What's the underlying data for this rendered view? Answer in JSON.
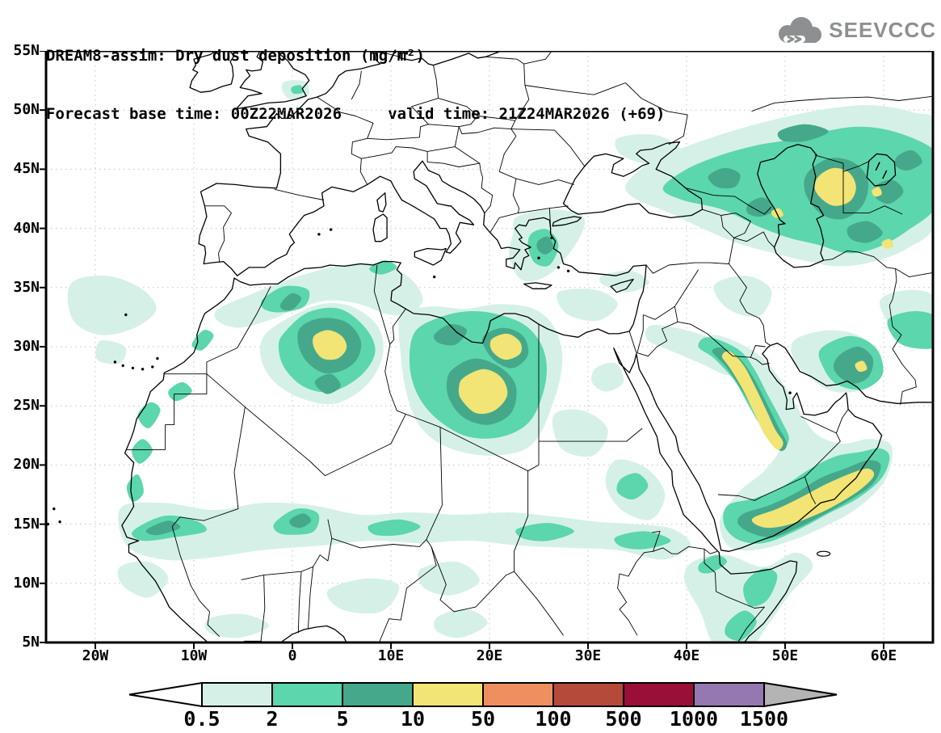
{
  "header": {
    "title": "DREAM8-assim: Dry dust deposition (mg/m²)",
    "subtitle": "Forecast base time: 00Z22MAR2026     valid time: 21Z24MAR2026 (+69)"
  },
  "logo": {
    "text": "SEEVCCC",
    "icon": "cloud-chevrons-icon",
    "color": "#8d8f91"
  },
  "map": {
    "lat_labels": [
      "55N",
      "50N",
      "45N",
      "40N",
      "35N",
      "30N",
      "25N",
      "20N",
      "15N",
      "10N",
      "5N"
    ],
    "lon_labels": [
      "20W",
      "10W",
      "0",
      "10E",
      "20E",
      "30E",
      "40E",
      "50E",
      "60E"
    ],
    "grid_color": "#c3c3c3",
    "line_color": "#000000"
  },
  "colorbar": {
    "values": [
      "0.5",
      "2",
      "5",
      "10",
      "50",
      "100",
      "500",
      "1000",
      "1500"
    ],
    "colors": [
      "#d5f1e7",
      "#5cd6ac",
      "#45a88b",
      "#f2e475",
      "#ef8f60",
      "#b54a3a",
      "#990f37",
      "#9678b0"
    ],
    "below_color": "#ffffff",
    "above_color": "#b4b4b4"
  }
}
